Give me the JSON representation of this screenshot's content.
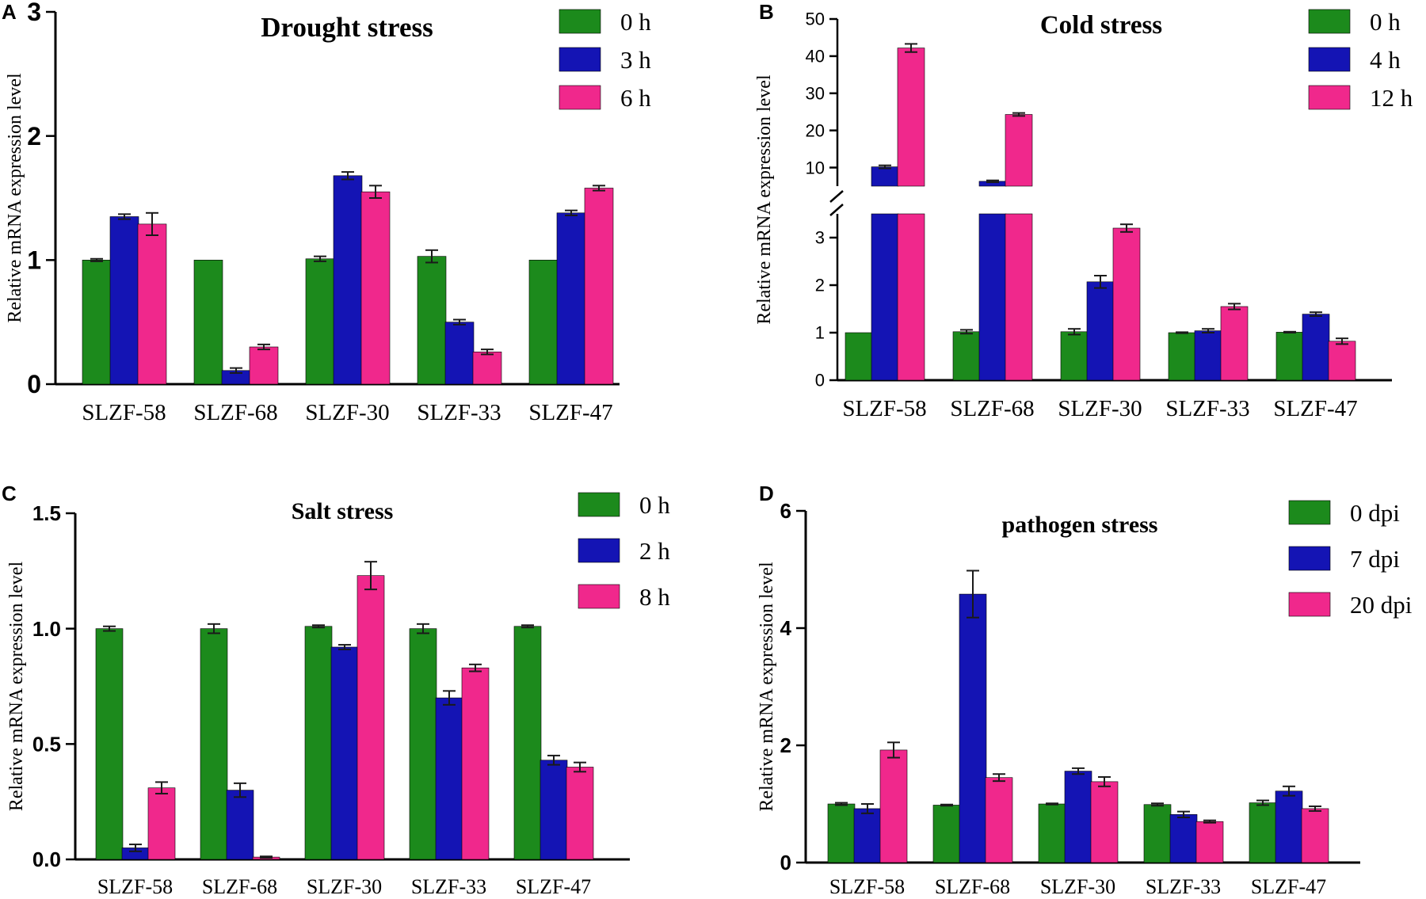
{
  "colors": {
    "green": "#1c8a1c",
    "blue": "#1414b4",
    "pink": "#f0288c",
    "axis": "#000000",
    "error": "#1a1a1a"
  },
  "chart_data": [
    {
      "panel": "A",
      "type": "bar",
      "title": "Drought stress",
      "xlabel": "",
      "ylabel": "Relative mRNA expression level",
      "categories": [
        "SLZF-58",
        "SLZF-68",
        "SLZF-30",
        "SLZF-33",
        "SLZF-47"
      ],
      "ylim": [
        0,
        3
      ],
      "yticks": [
        0,
        1,
        2,
        3
      ],
      "ytick_labels": [
        "0",
        "1",
        "2",
        "3"
      ],
      "legend": "top-right",
      "series": [
        {
          "name": "0 h",
          "color": "#1c8a1c",
          "values": [
            1.0,
            1.0,
            1.01,
            1.03,
            1.0
          ],
          "errors": [
            0.01,
            0.0,
            0.02,
            0.05,
            0.0
          ]
        },
        {
          "name": "3 h",
          "color": "#1414b4",
          "values": [
            1.35,
            0.11,
            1.68,
            0.5,
            1.38
          ],
          "errors": [
            0.02,
            0.02,
            0.03,
            0.02,
            0.02
          ]
        },
        {
          "name": "6 h",
          "color": "#f0288c",
          "values": [
            1.29,
            0.3,
            1.55,
            0.26,
            1.58
          ],
          "errors": [
            0.09,
            0.02,
            0.05,
            0.02,
            0.02
          ]
        }
      ]
    },
    {
      "panel": "B",
      "type": "bar",
      "title": "Cold stress",
      "xlabel": "",
      "ylabel": "Relative mRNA expression level",
      "categories": [
        "SLZF-58",
        "SLZF-68",
        "SLZF-30",
        "SLZF-33",
        "SLZF-47"
      ],
      "axis_break": {
        "lower_range": [
          0,
          3.5
        ],
        "upper_range": [
          5,
          50
        ]
      },
      "yticks_lower": [
        0,
        1,
        2,
        3
      ],
      "ytick_labels_lower": [
        "0",
        "1",
        "2",
        "3"
      ],
      "yticks_upper": [
        10,
        20,
        30,
        40,
        50
      ],
      "ytick_labels_upper": [
        "10",
        "20",
        "30",
        "40",
        "50"
      ],
      "legend": "top-right",
      "series": [
        {
          "name": "0 h",
          "color": "#1c8a1c",
          "values": [
            1.0,
            1.02,
            1.02,
            1.0,
            1.01
          ],
          "errors": [
            0.0,
            0.04,
            0.06,
            0.01,
            0.01
          ]
        },
        {
          "name": "4 h",
          "color": "#1414b4",
          "values": [
            10.2,
            6.3,
            2.07,
            1.04,
            1.39
          ],
          "errors": [
            0.4,
            0.25,
            0.13,
            0.04,
            0.04
          ]
        },
        {
          "name": "12 h",
          "color": "#f0288c",
          "values": [
            42.2,
            24.3,
            3.2,
            1.55,
            0.82
          ],
          "errors": [
            1.1,
            0.4,
            0.08,
            0.06,
            0.06
          ]
        }
      ]
    },
    {
      "panel": "C",
      "type": "bar",
      "title": "Salt stress",
      "xlabel": "",
      "ylabel": "Relative mRNA expression level",
      "categories": [
        "SLZF-58",
        "SLZF-68",
        "SLZF-30",
        "SLZF-33",
        "SLZF-47"
      ],
      "ylim": [
        0,
        1.5
      ],
      "yticks": [
        0,
        0.5,
        1.0,
        1.5
      ],
      "ytick_labels": [
        "0.0",
        "0.5",
        "1.0",
        "1.5"
      ],
      "legend": "top-right",
      "series": [
        {
          "name": "0 h",
          "color": "#1c8a1c",
          "values": [
            1.0,
            1.0,
            1.01,
            1.0,
            1.01
          ],
          "errors": [
            0.01,
            0.02,
            0.005,
            0.02,
            0.005
          ]
        },
        {
          "name": "2 h",
          "color": "#1414b4",
          "values": [
            0.05,
            0.3,
            0.92,
            0.7,
            0.43
          ],
          "errors": [
            0.015,
            0.03,
            0.01,
            0.03,
            0.02
          ]
        },
        {
          "name": "8 h",
          "color": "#f0288c",
          "values": [
            0.31,
            0.01,
            1.23,
            0.83,
            0.4
          ],
          "errors": [
            0.025,
            0.003,
            0.06,
            0.015,
            0.02
          ]
        }
      ]
    },
    {
      "panel": "D",
      "type": "bar",
      "title": "pathogen stress",
      "xlabel": "",
      "ylabel": "Relative mRNA expression level",
      "categories": [
        "SLZF-58",
        "SLZF-68",
        "SLZF-30",
        "SLZF-33",
        "SLZF-47"
      ],
      "ylim": [
        0,
        6
      ],
      "yticks": [
        0,
        2,
        4,
        6
      ],
      "ytick_labels": [
        "0",
        "2",
        "4",
        "6"
      ],
      "legend": "top-right",
      "series": [
        {
          "name": "0 dpi",
          "color": "#1c8a1c",
          "values": [
            1.0,
            0.98,
            1.0,
            0.99,
            1.02
          ],
          "errors": [
            0.02,
            0.01,
            0.01,
            0.02,
            0.04
          ]
        },
        {
          "name": "7 dpi",
          "color": "#1414b4",
          "values": [
            0.92,
            4.58,
            1.56,
            0.82,
            1.22
          ],
          "errors": [
            0.08,
            0.4,
            0.05,
            0.05,
            0.08
          ]
        },
        {
          "name": "20 dpi",
          "color": "#f0288c",
          "values": [
            1.92,
            1.45,
            1.38,
            0.7,
            0.92
          ],
          "errors": [
            0.13,
            0.06,
            0.08,
            0.02,
            0.04
          ]
        }
      ]
    }
  ]
}
